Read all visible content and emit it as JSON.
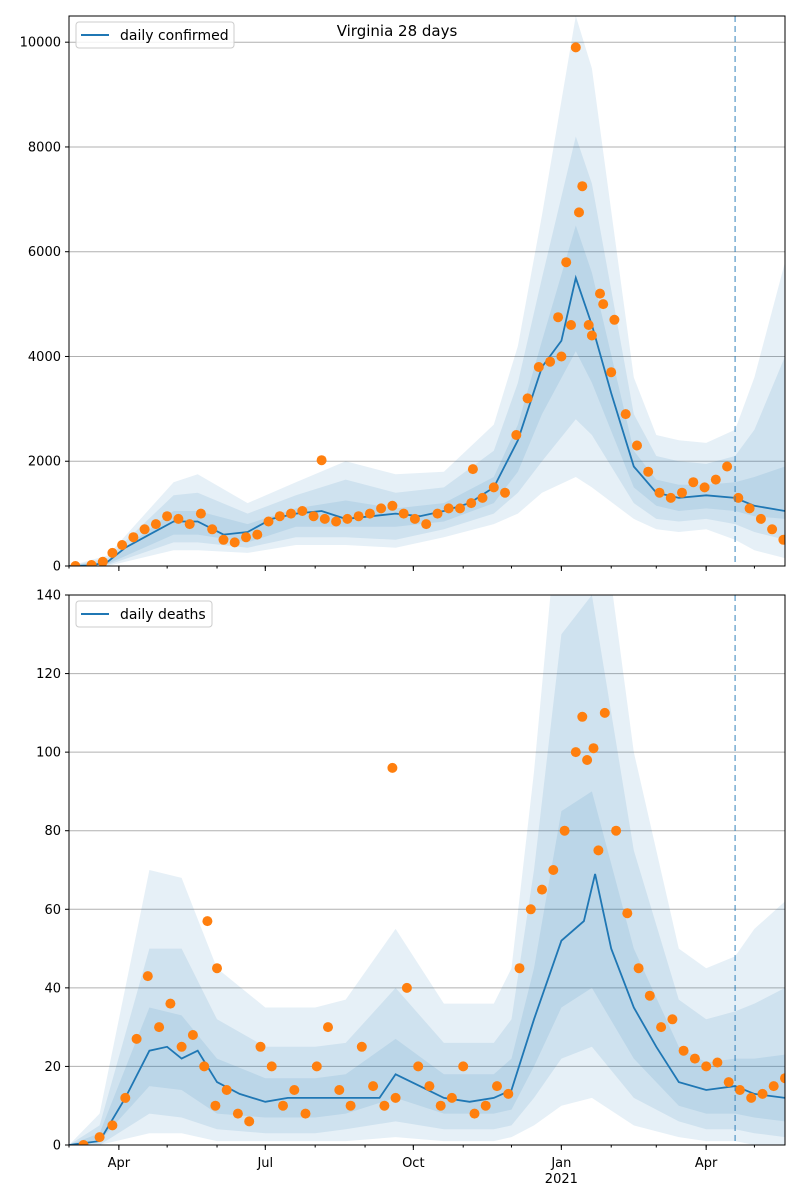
{
  "figure": {
    "title": "Virginia 28 days",
    "colors": {
      "model": "#1f77b4",
      "observed": "#ff7f0e",
      "grid": "#b0b0b0",
      "forecast_line": "#1f77b4"
    }
  },
  "chart_data": [
    {
      "type": "line",
      "legend": "daily confirmed",
      "legend_position": "top-left",
      "grid": "horizontal",
      "xlim": [
        "2020-03-01",
        "2021-05-20"
      ],
      "ylim": [
        0,
        10500
      ],
      "yticks": [
        0,
        2000,
        4000,
        6000,
        8000,
        10000
      ],
      "xticks": [
        {
          "date": "2020-04-01",
          "label": "Apr"
        },
        {
          "date": "2020-07-01",
          "label": "Jul"
        },
        {
          "date": "2020-10-01",
          "label": "Oct"
        },
        {
          "date": "2021-01-01",
          "label": "Jan",
          "sub": "2021"
        },
        {
          "date": "2021-04-01",
          "label": "Apr"
        }
      ],
      "forecast_start": "2021-04-19",
      "model": {
        "x": [
          "2020-03-01",
          "2020-03-15",
          "2020-03-25",
          "2020-04-05",
          "2020-04-20",
          "2020-05-05",
          "2020-05-20",
          "2020-06-05",
          "2020-06-20",
          "2020-07-05",
          "2020-07-20",
          "2020-08-05",
          "2020-08-20",
          "2020-09-05",
          "2020-09-20",
          "2020-10-05",
          "2020-10-20",
          "2020-11-05",
          "2020-11-20",
          "2020-12-05",
          "2020-12-20",
          "2021-01-01",
          "2021-01-10",
          "2021-01-20",
          "2021-02-01",
          "2021-02-15",
          "2021-03-01",
          "2021-03-15",
          "2021-04-01",
          "2021-04-19",
          "2021-05-01",
          "2021-05-20"
        ],
        "y": [
          0,
          10,
          80,
          350,
          600,
          850,
          850,
          600,
          650,
          900,
          1000,
          1050,
          900,
          950,
          1000,
          950,
          1050,
          1200,
          1500,
          2400,
          3800,
          4300,
          5500,
          4600,
          3300,
          1900,
          1400,
          1300,
          1350,
          1300,
          1150,
          1050
        ]
      },
      "bands": {
        "x": [
          "2020-03-01",
          "2020-03-25",
          "2020-05-05",
          "2020-05-20",
          "2020-06-20",
          "2020-07-20",
          "2020-08-20",
          "2020-09-20",
          "2020-10-20",
          "2020-11-20",
          "2020-12-05",
          "2020-12-20",
          "2021-01-10",
          "2021-01-20",
          "2021-02-15",
          "2021-03-01",
          "2021-03-15",
          "2021-04-01",
          "2021-04-19",
          "2021-05-01",
          "2021-05-20"
        ],
        "lo95": [
          0,
          0,
          300,
          300,
          250,
          400,
          400,
          350,
          550,
          800,
          1000,
          1400,
          1700,
          1500,
          900,
          700,
          650,
          700,
          500,
          300,
          150
        ],
        "lo80": [
          0,
          20,
          450,
          450,
          350,
          550,
          550,
          500,
          700,
          1000,
          1400,
          2000,
          2800,
          2500,
          1200,
          900,
          850,
          900,
          800,
          650,
          500
        ],
        "lo50": [
          0,
          40,
          600,
          600,
          450,
          750,
          750,
          750,
          850,
          1200,
          1800,
          2900,
          4100,
          3500,
          1500,
          1150,
          1050,
          1100,
          1050,
          950,
          900
        ],
        "hi50": [
          0,
          100,
          1050,
          1050,
          800,
          1100,
          1250,
          1100,
          1200,
          1700,
          2700,
          4300,
          6500,
          5600,
          2200,
          1650,
          1550,
          1550,
          1600,
          1700,
          1900
        ],
        "hi80": [
          0,
          150,
          1350,
          1400,
          1000,
          1350,
          1650,
          1400,
          1500,
          2200,
          3500,
          5500,
          8200,
          7300,
          2900,
          2100,
          2000,
          1950,
          2100,
          2600,
          4000
        ],
        "hi95": [
          0,
          200,
          1600,
          1750,
          1200,
          1600,
          2000,
          1750,
          1800,
          2700,
          4200,
          6700,
          10500,
          9500,
          3600,
          2500,
          2400,
          2350,
          2600,
          3600,
          5800
        ]
      },
      "observed": {
        "x": [
          "2020-03-05",
          "2020-03-15",
          "2020-03-22",
          "2020-03-28",
          "2020-04-03",
          "2020-04-10",
          "2020-04-17",
          "2020-04-24",
          "2020-05-01",
          "2020-05-08",
          "2020-05-15",
          "2020-05-22",
          "2020-05-29",
          "2020-06-05",
          "2020-06-12",
          "2020-06-19",
          "2020-06-26",
          "2020-07-03",
          "2020-07-10",
          "2020-07-17",
          "2020-07-24",
          "2020-07-31",
          "2020-08-07",
          "2020-08-14",
          "2020-08-21",
          "2020-08-28",
          "2020-09-04",
          "2020-09-11",
          "2020-09-18",
          "2020-09-25",
          "2020-10-02",
          "2020-10-09",
          "2020-10-16",
          "2020-10-23",
          "2020-10-30",
          "2020-11-06",
          "2020-11-13",
          "2020-11-20",
          "2020-11-27",
          "2020-12-04",
          "2020-12-11",
          "2020-12-18",
          "2020-12-25",
          "2021-01-01",
          "2021-01-07",
          "2021-01-10",
          "2021-01-14",
          "2021-01-20",
          "2021-01-27",
          "2021-02-03",
          "2021-02-10",
          "2021-02-17",
          "2021-02-24",
          "2021-03-03",
          "2021-03-10",
          "2021-03-17",
          "2021-03-24",
          "2021-03-31",
          "2021-04-07",
          "2021-04-14",
          "2021-04-21",
          "2021-04-28",
          "2021-05-05",
          "2021-05-12",
          "2021-05-19",
          "2020-08-05",
          "2020-11-07",
          "2020-12-30",
          "2021-01-04",
          "2021-01-12",
          "2021-01-18",
          "2021-01-25",
          "2021-02-01"
        ],
        "y": [
          0,
          20,
          80,
          250,
          400,
          550,
          700,
          800,
          950,
          900,
          800,
          1000,
          700,
          500,
          450,
          550,
          600,
          850,
          950,
          1000,
          1050,
          950,
          900,
          850,
          900,
          950,
          1000,
          1100,
          1150,
          1000,
          900,
          800,
          1000,
          1100,
          1100,
          1200,
          1300,
          1500,
          1400,
          2500,
          3200,
          3800,
          3900,
          4000,
          4600,
          9900,
          7250,
          4400,
          5000,
          4700,
          2900,
          2300,
          1800,
          1400,
          1300,
          1400,
          1600,
          1500,
          1650,
          1900,
          1300,
          1100,
          900,
          700,
          500,
          2020,
          1850,
          4750,
          5800,
          6750,
          4600,
          5200,
          3700
        ]
      }
    },
    {
      "type": "line",
      "legend": "daily deaths",
      "legend_position": "top-left",
      "grid": "horizontal",
      "xlim": [
        "2020-03-01",
        "2021-05-20"
      ],
      "ylim": [
        0,
        140
      ],
      "yticks": [
        0,
        20,
        40,
        60,
        80,
        100,
        120,
        140
      ],
      "xticks": [
        {
          "date": "2020-04-01",
          "label": "Apr"
        },
        {
          "date": "2020-07-01",
          "label": "Jul"
        },
        {
          "date": "2020-10-01",
          "label": "Oct"
        },
        {
          "date": "2021-01-01",
          "label": "Jan",
          "sub": "2021"
        },
        {
          "date": "2021-04-01",
          "label": "Apr"
        }
      ],
      "forecast_start": "2021-04-19",
      "model": {
        "x": [
          "2020-03-01",
          "2020-03-20",
          "2020-04-05",
          "2020-04-20",
          "2020-05-01",
          "2020-05-10",
          "2020-05-20",
          "2020-06-01",
          "2020-06-15",
          "2020-07-01",
          "2020-07-15",
          "2020-08-01",
          "2020-08-20",
          "2020-09-10",
          "2020-09-20",
          "2020-10-05",
          "2020-10-20",
          "2020-11-05",
          "2020-11-20",
          "2020-12-01",
          "2020-12-15",
          "2021-01-01",
          "2021-01-15",
          "2021-01-22",
          "2021-02-01",
          "2021-02-15",
          "2021-03-01",
          "2021-03-15",
          "2021-04-01",
          "2021-04-19",
          "2021-05-01",
          "2021-05-20"
        ],
        "y": [
          0,
          1,
          12,
          24,
          25,
          22,
          24,
          16,
          13,
          11,
          12,
          12,
          12,
          12,
          18,
          15,
          12,
          11,
          12,
          14,
          32,
          52,
          57,
          69,
          50,
          35,
          25,
          16,
          14,
          15,
          13,
          12
        ]
      },
      "bands": {
        "x": [
          "2020-03-01",
          "2020-03-20",
          "2020-04-20",
          "2020-05-10",
          "2020-06-01",
          "2020-07-01",
          "2020-08-01",
          "2020-08-20",
          "2020-09-20",
          "2020-10-20",
          "2020-11-20",
          "2020-12-01",
          "2020-12-15",
          "2021-01-01",
          "2021-01-20",
          "2021-02-15",
          "2021-03-15",
          "2021-04-01",
          "2021-04-19",
          "2021-05-01",
          "2021-05-20"
        ],
        "lo95": [
          0,
          0,
          3,
          3,
          1,
          1,
          1,
          1,
          2,
          1,
          1,
          2,
          5,
          10,
          12,
          5,
          2,
          1,
          1,
          0,
          0
        ],
        "lo80": [
          0,
          0,
          8,
          7,
          4,
          3,
          3,
          4,
          6,
          4,
          4,
          5,
          12,
          22,
          25,
          12,
          6,
          4,
          4,
          3,
          2
        ],
        "lo50": [
          0,
          1,
          15,
          14,
          8,
          7,
          7,
          8,
          12,
          8,
          8,
          9,
          20,
          35,
          40,
          22,
          10,
          8,
          8,
          7,
          6
        ],
        "hi50": [
          0,
          3,
          35,
          33,
          22,
          17,
          17,
          18,
          27,
          18,
          18,
          22,
          45,
          85,
          90,
          50,
          25,
          21,
          22,
          22,
          23
        ],
        "hi80": [
          0,
          5,
          50,
          50,
          32,
          25,
          25,
          26,
          40,
          26,
          26,
          32,
          70,
          130,
          140,
          75,
          37,
          32,
          34,
          36,
          40
        ],
        "hi95": [
          0,
          8,
          70,
          68,
          45,
          35,
          35,
          37,
          55,
          36,
          36,
          45,
          95,
          170,
          180,
          100,
          50,
          45,
          48,
          55,
          62
        ]
      },
      "observed": {
        "x": [
          "2020-03-10",
          "2020-03-20",
          "2020-03-28",
          "2020-04-05",
          "2020-04-12",
          "2020-04-19",
          "2020-04-26",
          "2020-05-03",
          "2020-05-10",
          "2020-05-17",
          "2020-05-24",
          "2020-05-31",
          "2020-06-07",
          "2020-06-14",
          "2020-06-21",
          "2020-06-28",
          "2020-07-05",
          "2020-07-12",
          "2020-07-19",
          "2020-07-26",
          "2020-08-02",
          "2020-08-09",
          "2020-08-16",
          "2020-08-23",
          "2020-08-30",
          "2020-09-06",
          "2020-09-13",
          "2020-09-20",
          "2020-09-27",
          "2020-10-04",
          "2020-10-11",
          "2020-10-18",
          "2020-10-25",
          "2020-11-01",
          "2020-11-08",
          "2020-11-15",
          "2020-11-22",
          "2020-11-29",
          "2020-12-06",
          "2020-12-13",
          "2020-12-20",
          "2020-12-27",
          "2021-01-03",
          "2021-01-10",
          "2021-01-14",
          "2021-01-17",
          "2021-01-21",
          "2021-01-24",
          "2021-01-28",
          "2021-02-04",
          "2021-02-11",
          "2021-02-18",
          "2021-02-25",
          "2021-03-04",
          "2021-03-11",
          "2021-03-18",
          "2021-03-25",
          "2021-04-01",
          "2021-04-08",
          "2021-04-15",
          "2021-04-22",
          "2021-04-29",
          "2021-05-06",
          "2021-05-13",
          "2021-05-20",
          "2020-09-18",
          "2020-05-26",
          "2020-06-01"
        ],
        "y": [
          0,
          2,
          5,
          12,
          27,
          43,
          30,
          36,
          25,
          28,
          20,
          10,
          14,
          8,
          6,
          25,
          20,
          10,
          14,
          8,
          20,
          30,
          14,
          10,
          25,
          15,
          10,
          12,
          40,
          20,
          15,
          10,
          12,
          20,
          8,
          10,
          15,
          13,
          45,
          60,
          65,
          70,
          80,
          100,
          109,
          98,
          101,
          75,
          110,
          80,
          59,
          45,
          38,
          30,
          32,
          24,
          22,
          20,
          21,
          16,
          14,
          12,
          13,
          15,
          17,
          96,
          57,
          45
        ]
      }
    }
  ]
}
